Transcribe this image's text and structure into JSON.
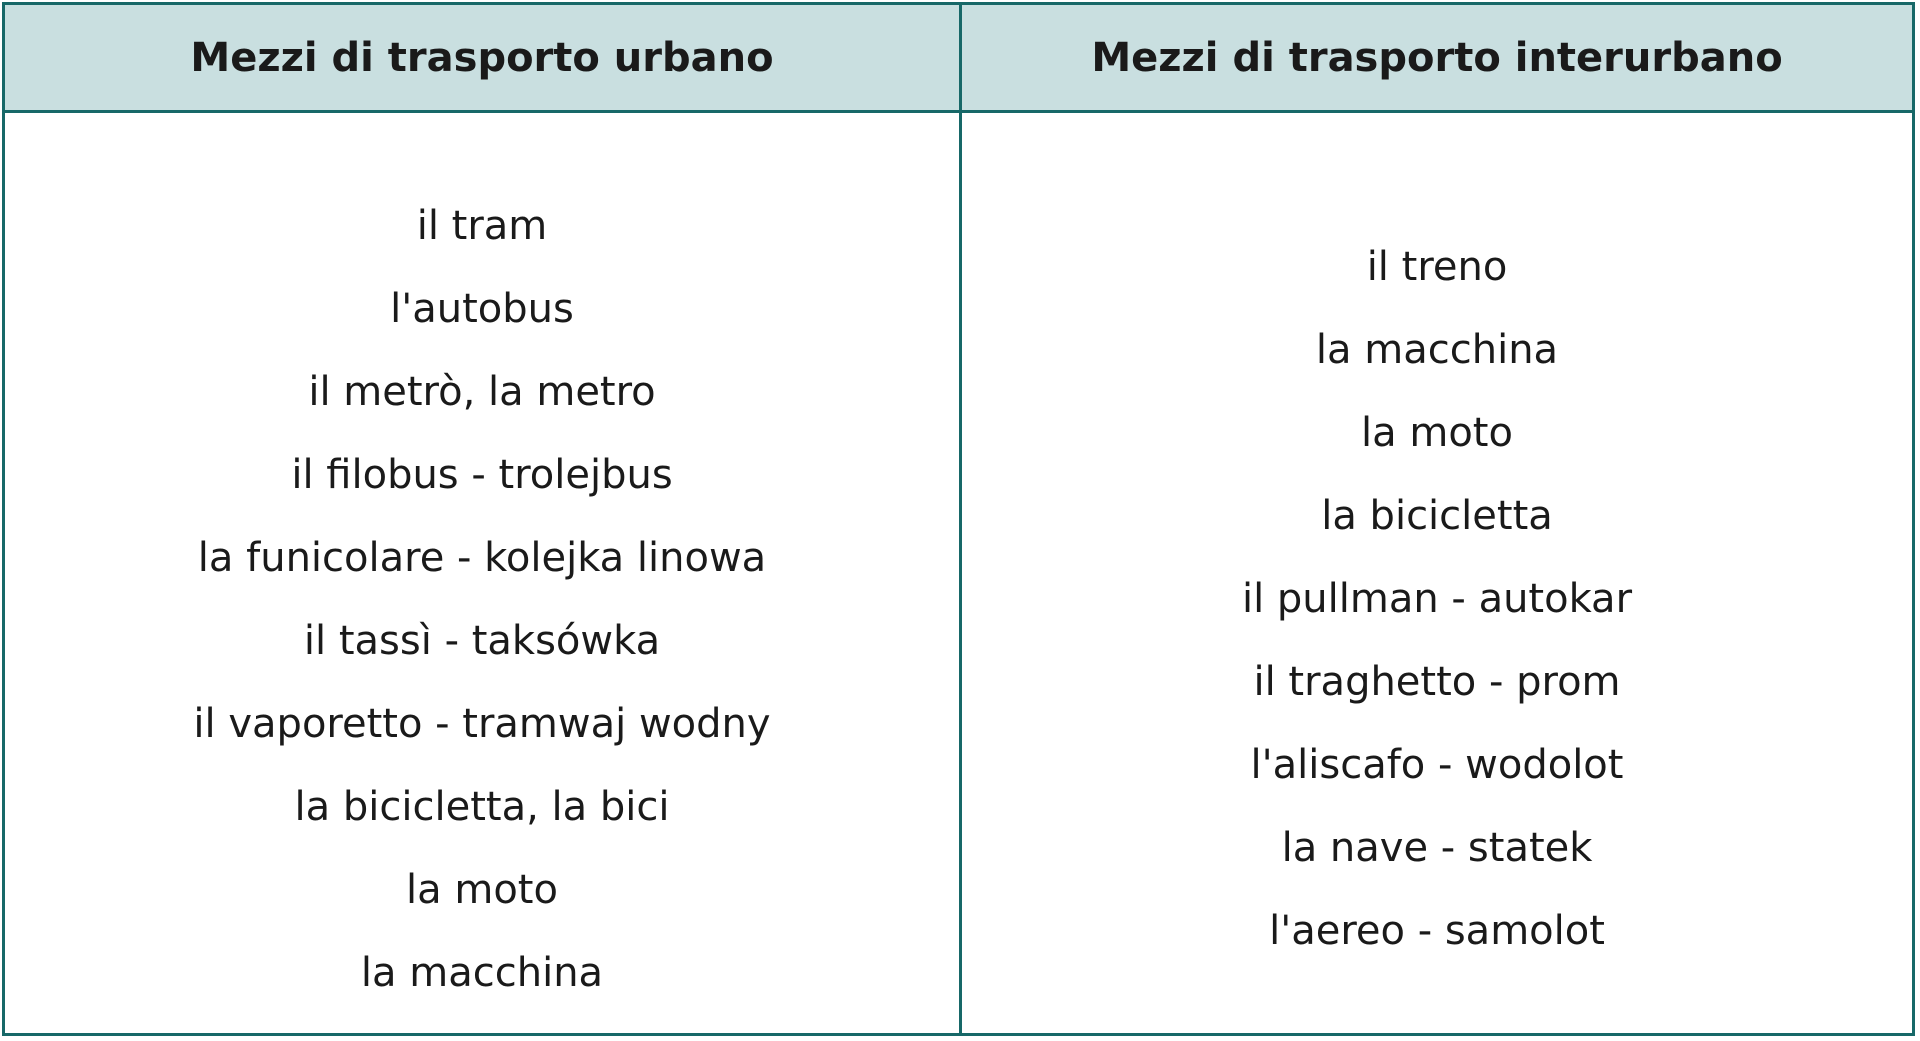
{
  "headers": [
    "Mezzi di trasporto urbano",
    "Mezzi di trasporto interurbano"
  ],
  "urban": [
    "il tram",
    "l'autobus",
    "il metrò, la metro",
    "il filobus - trolejbus",
    "la funicolare - kolejka linowa",
    "il tassì - taksówka",
    "il vaporetto - tramwaj wodny",
    "la bicicletta, la bici",
    "la moto",
    "la macchina"
  ],
  "interurban": [
    "il treno",
    "la macchina",
    "la moto",
    "la bicicletta",
    "il pullman - autokar",
    "il traghetto - prom",
    "l'aliscafo - wodolot",
    "la nave - statek",
    "l'aereo - samolot"
  ],
  "colors": {
    "border": "#176868",
    "header_bg": "#c9dfe0"
  }
}
